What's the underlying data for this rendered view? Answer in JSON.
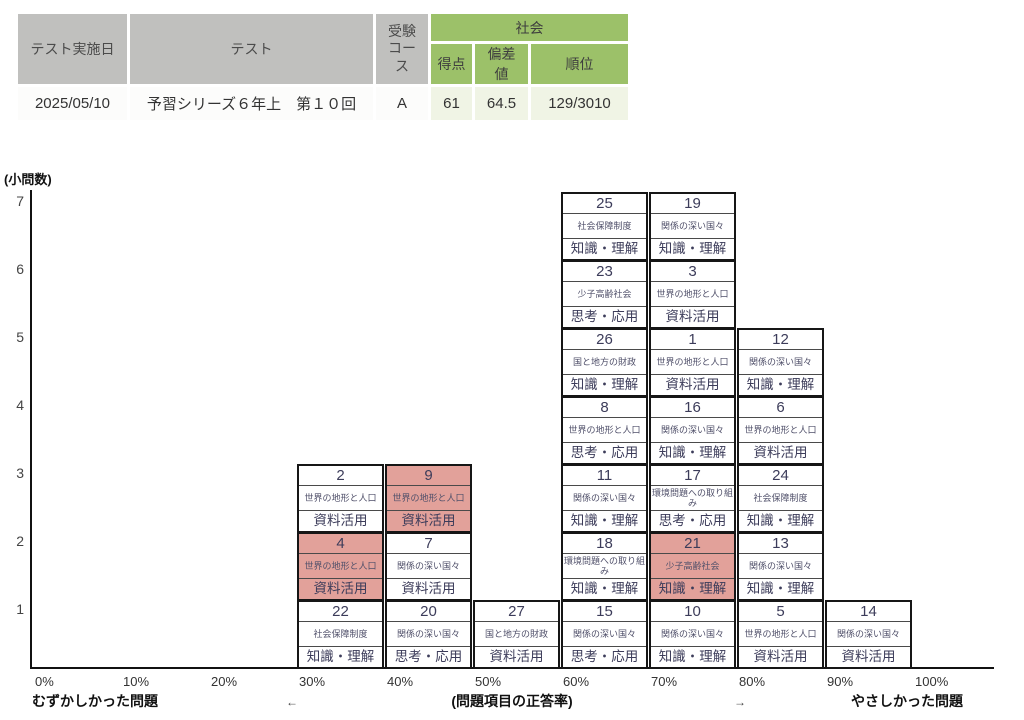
{
  "table": {
    "headers": {
      "date": "テスト実施日",
      "test": "テスト",
      "course": "受験\nコース",
      "subject": "社会",
      "score": "得点",
      "deviation": "偏差値",
      "rank": "順位"
    },
    "row": {
      "date": "2025/05/10",
      "test": "予習シリーズ６年上　第１０回",
      "course": "A",
      "score": "61",
      "deviation": "64.5",
      "rank": "129/3010"
    }
  },
  "colors": {
    "header_gray": "#c0c0be",
    "header_green": "#9cc169",
    "value_light_green": "#f0f4e5",
    "highlight_pink": "#e2a19a",
    "cell_text_navy": "#3c3c5a"
  },
  "chart_data": {
    "type": "bar",
    "title": "",
    "ylabel": "(小問数)",
    "xlabel": "(問題項目の正答率)",
    "note_left": "むずかしかった問題",
    "note_right": "やさしかった問題",
    "arrow_left": "←",
    "arrow_right": "→",
    "y_ticks": [
      1,
      2,
      3,
      4,
      5,
      6,
      7
    ],
    "x_ticks": [
      "0%",
      "10%",
      "20%",
      "30%",
      "40%",
      "50%",
      "60%",
      "70%",
      "80%",
      "90%",
      "100%"
    ],
    "ylim": [
      0,
      7
    ],
    "legend": "stacked cells: question number / topic / skill category; pink = highlighted question",
    "columns": [
      {
        "range": "30%-40%",
        "cells": [
          {
            "no": "22",
            "topic": "社会保障制度",
            "category": "知識・理解",
            "highlight": false
          },
          {
            "no": "4",
            "topic": "世界の地形と人口",
            "category": "資料活用",
            "highlight": true
          },
          {
            "no": "2",
            "topic": "世界の地形と人口",
            "category": "資料活用",
            "highlight": false
          }
        ]
      },
      {
        "range": "40%-50%",
        "cells": [
          {
            "no": "20",
            "topic": "関係の深い国々",
            "category": "思考・応用",
            "highlight": false
          },
          {
            "no": "7",
            "topic": "関係の深い国々",
            "category": "資料活用",
            "highlight": false
          },
          {
            "no": "9",
            "topic": "世界の地形と人口",
            "category": "資料活用",
            "highlight": true
          }
        ]
      },
      {
        "range": "50%-60%",
        "cells": [
          {
            "no": "27",
            "topic": "国と地方の財政",
            "category": "資料活用",
            "highlight": false
          }
        ]
      },
      {
        "range": "60%-70%",
        "cells": [
          {
            "no": "15",
            "topic": "関係の深い国々",
            "category": "思考・応用",
            "highlight": false
          },
          {
            "no": "18",
            "topic": "環境問題への取り組み",
            "category": "知識・理解",
            "highlight": false
          },
          {
            "no": "11",
            "topic": "関係の深い国々",
            "category": "知識・理解",
            "highlight": false
          },
          {
            "no": "8",
            "topic": "世界の地形と人口",
            "category": "思考・応用",
            "highlight": false
          },
          {
            "no": "26",
            "topic": "国と地方の財政",
            "category": "知識・理解",
            "highlight": false
          },
          {
            "no": "23",
            "topic": "少子高齢社会",
            "category": "思考・応用",
            "highlight": false
          },
          {
            "no": "25",
            "topic": "社会保障制度",
            "category": "知識・理解",
            "highlight": false
          }
        ]
      },
      {
        "range": "70%-80%",
        "cells": [
          {
            "no": "10",
            "topic": "関係の深い国々",
            "category": "知識・理解",
            "highlight": false
          },
          {
            "no": "21",
            "topic": "少子高齢社会",
            "category": "知識・理解",
            "highlight": true
          },
          {
            "no": "17",
            "topic": "環境問題への取り組み",
            "category": "思考・応用",
            "highlight": false
          },
          {
            "no": "16",
            "topic": "関係の深い国々",
            "category": "知識・理解",
            "highlight": false
          },
          {
            "no": "1",
            "topic": "世界の地形と人口",
            "category": "資料活用",
            "highlight": false
          },
          {
            "no": "3",
            "topic": "世界の地形と人口",
            "category": "資料活用",
            "highlight": false
          },
          {
            "no": "19",
            "topic": "関係の深い国々",
            "category": "知識・理解",
            "highlight": false
          }
        ]
      },
      {
        "range": "80%-90%",
        "cells": [
          {
            "no": "5",
            "topic": "世界の地形と人口",
            "category": "資料活用",
            "highlight": false
          },
          {
            "no": "13",
            "topic": "関係の深い国々",
            "category": "知識・理解",
            "highlight": false
          },
          {
            "no": "24",
            "topic": "社会保障制度",
            "category": "知識・理解",
            "highlight": false
          },
          {
            "no": "6",
            "topic": "世界の地形と人口",
            "category": "資料活用",
            "highlight": false
          },
          {
            "no": "12",
            "topic": "関係の深い国々",
            "category": "知識・理解",
            "highlight": false
          }
        ]
      },
      {
        "range": "90%-100%",
        "cells": [
          {
            "no": "14",
            "topic": "関係の深い国々",
            "category": "資料活用",
            "highlight": false
          }
        ]
      }
    ]
  }
}
